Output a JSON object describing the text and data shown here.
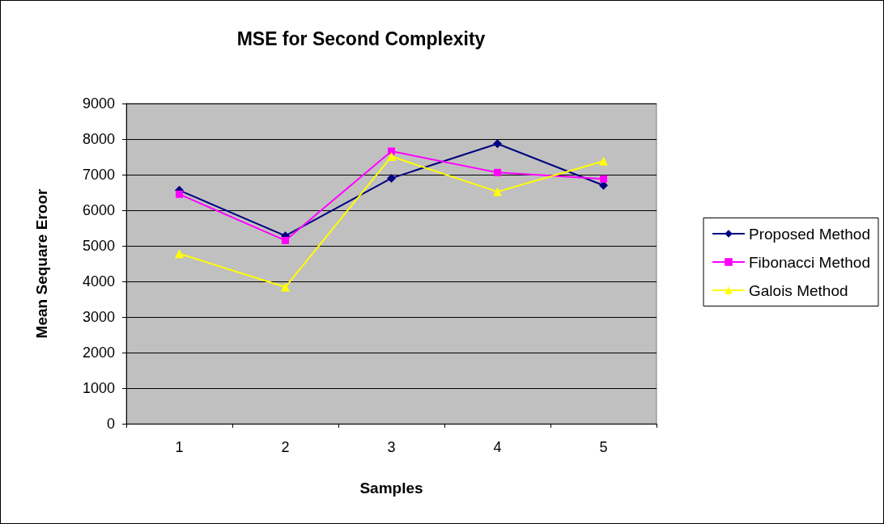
{
  "chart_data": {
    "type": "line",
    "title": "MSE for Second Complexity",
    "xlabel": "Samples",
    "ylabel": "Mean Sequare Eroor",
    "categories": [
      "1",
      "2",
      "3",
      "4",
      "5"
    ],
    "series": [
      {
        "name": "Proposed Method",
        "color": "#000080",
        "marker": "diamond",
        "values": [
          6560,
          5280,
          6900,
          7870,
          6700
        ]
      },
      {
        "name": "Fibonacci Method",
        "color": "#ff00ff",
        "marker": "square",
        "values": [
          6450,
          5150,
          7660,
          7060,
          6880
        ]
      },
      {
        "name": "Galois Method",
        "color": "#ffff00",
        "marker": "triangle",
        "values": [
          4780,
          3840,
          7510,
          6520,
          7380
        ]
      }
    ],
    "ylim": [
      0,
      9000
    ],
    "yticks": [
      0,
      1000,
      2000,
      3000,
      4000,
      5000,
      6000,
      7000,
      8000,
      9000
    ],
    "grid": "y",
    "legend": "right"
  }
}
